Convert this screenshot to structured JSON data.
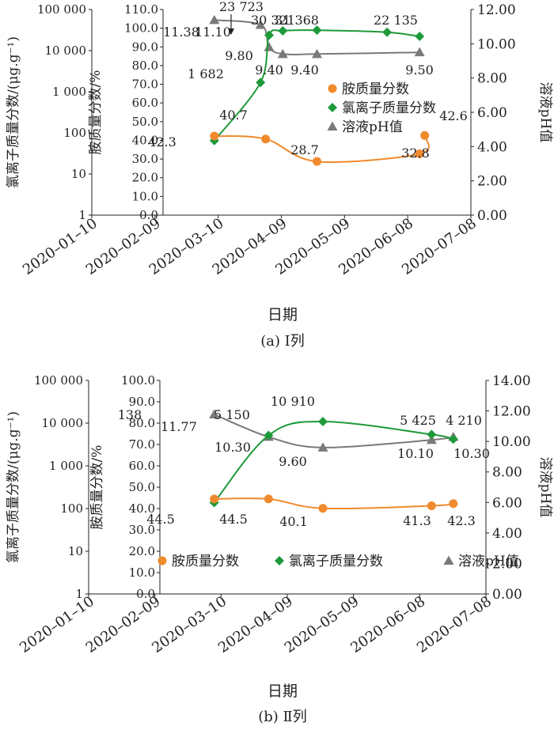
{
  "figure": {
    "xlabel": "日期",
    "x_ticks": [
      "2020–01–10",
      "2020–02–09",
      "2020–03–10",
      "2020–04–09",
      "2020–05–09",
      "2020–06–08",
      "2020–07–08"
    ],
    "colors": {
      "amine": "#f08a2c",
      "chloride": "#1f9a3a",
      "ph": "#7a7a7a",
      "axis": "#222222"
    }
  },
  "chart_data": [
    {
      "type": "line",
      "caption": "(a) Ⅰ列",
      "xlabel": "日期",
      "y_left_log_label": "氯离子质量分数/(μg.g⁻¹)",
      "y_left_lin_label": "胺质量分数/%",
      "y_right_label": "溶液pH值",
      "y_left_log_ticks": [
        "100 000",
        "10 000",
        "1 000",
        "100",
        "10",
        "1"
      ],
      "y_left_lin_ticks": [
        "110.0",
        "100.0",
        "90.0",
        "80.0",
        "70.0",
        "60.0",
        "50.0",
        "40.0",
        "30.0",
        "20.0",
        "10.0",
        "0.0"
      ],
      "y_right_ticks": [
        "12.00",
        "10.00",
        "8.00",
        "6.00",
        "4.00",
        "2.00",
        "0.00"
      ],
      "ylim_log": [
        1,
        100000
      ],
      "ylim_lin": [
        0,
        110
      ],
      "ylim_right": [
        0,
        12
      ],
      "legend": [
        "胺质量分数",
        "氯离子质量分数",
        "溶液pH值"
      ],
      "legend_position": "right-middle",
      "series": [
        {
          "name": "胺质量分数",
          "axis": "left-linear",
          "marker": "circle",
          "x": [
            "2020-02-09",
            "2020-03-10",
            "2020-04-09",
            "2020-06-08",
            "2020-06-11"
          ],
          "values": [
            42.3,
            40.7,
            28.7,
            32.8,
            42.6
          ],
          "labels": [
            "42.3",
            "40.7",
            "28.7",
            "32.8",
            "42.6"
          ]
        },
        {
          "name": "氯离子质量分数",
          "axis": "left-log",
          "marker": "diamond",
          "x": [
            "2020-02-09",
            "2020-03-07",
            "2020-03-12",
            "2020-03-20",
            "2020-04-09",
            "2020-05-20",
            "2020-06-08"
          ],
          "values": [
            65,
            1682,
            23723,
            30321,
            31368,
            28000,
            22135
          ],
          "labels": [
            "",
            "1 682",
            "23 723",
            "30 321",
            "31 368",
            "",
            "22 135"
          ]
        },
        {
          "name": "溶液pH值",
          "axis": "right",
          "marker": "triangle",
          "x": [
            "2020-02-09",
            "2020-03-07",
            "2020-03-12",
            "2020-03-20",
            "2020-04-09",
            "2020-06-08"
          ],
          "values": [
            11.38,
            11.1,
            9.8,
            9.4,
            9.4,
            9.5
          ],
          "labels": [
            "11.38",
            "11.10",
            "9.80",
            "9.40",
            "9.40",
            "9.50"
          ]
        }
      ]
    },
    {
      "type": "line",
      "caption": "(b) Ⅱ列",
      "xlabel": "日期",
      "y_left_log_label": "氯离子质量分数/(μg.g⁻¹)",
      "y_left_lin_label": "胺质量分数/%",
      "y_right_label": "溶液pH值",
      "y_left_log_ticks": [
        "100 000",
        "10 000",
        "1 000",
        "100",
        "10",
        "1"
      ],
      "y_left_lin_ticks": [
        "100.0",
        "90.0",
        "80.0",
        "70.0",
        "60.0",
        "50.0",
        "40.0",
        "30.0",
        "20.0",
        "10.0",
        "0.0"
      ],
      "y_right_ticks": [
        "14.00",
        "12.00",
        "10.00",
        "8.00",
        "6.00",
        "4.00",
        "2.00",
        "0.00"
      ],
      "ylim_log": [
        1,
        100000
      ],
      "ylim_lin": [
        0,
        100
      ],
      "ylim_right": [
        0,
        14
      ],
      "legend": [
        "胺质量分数",
        "氯离子质量分数",
        "溶液pH值"
      ],
      "legend_position": "bottom",
      "series": [
        {
          "name": "胺质量分数",
          "axis": "left-linear",
          "marker": "circle",
          "x": [
            "2020-02-09",
            "2020-03-10",
            "2020-04-09",
            "2020-06-08",
            "2020-06-20"
          ],
          "values": [
            44.5,
            44.5,
            40.1,
            41.3,
            42.3
          ],
          "labels": [
            "44.5",
            "44.5",
            "40.1",
            "41.3",
            "42.3"
          ]
        },
        {
          "name": "氯离子质量分数",
          "axis": "left-log",
          "marker": "diamond",
          "x": [
            "2020-02-09",
            "2020-03-10",
            "2020-04-09",
            "2020-06-08",
            "2020-06-20"
          ],
          "values": [
            138,
            5150,
            10910,
            5425,
            4210
          ],
          "labels": [
            "138",
            "5 150",
            "10 910",
            "5 425",
            "4 210"
          ]
        },
        {
          "name": "溶液pH值",
          "axis": "right",
          "marker": "triangle",
          "x": [
            "2020-02-09",
            "2020-03-10",
            "2020-04-09",
            "2020-06-08",
            "2020-06-20"
          ],
          "values": [
            11.77,
            10.3,
            9.6,
            10.1,
            10.3
          ],
          "labels": [
            "11.77",
            "10.30",
            "9.60",
            "10.10",
            "10.30"
          ]
        }
      ]
    }
  ]
}
